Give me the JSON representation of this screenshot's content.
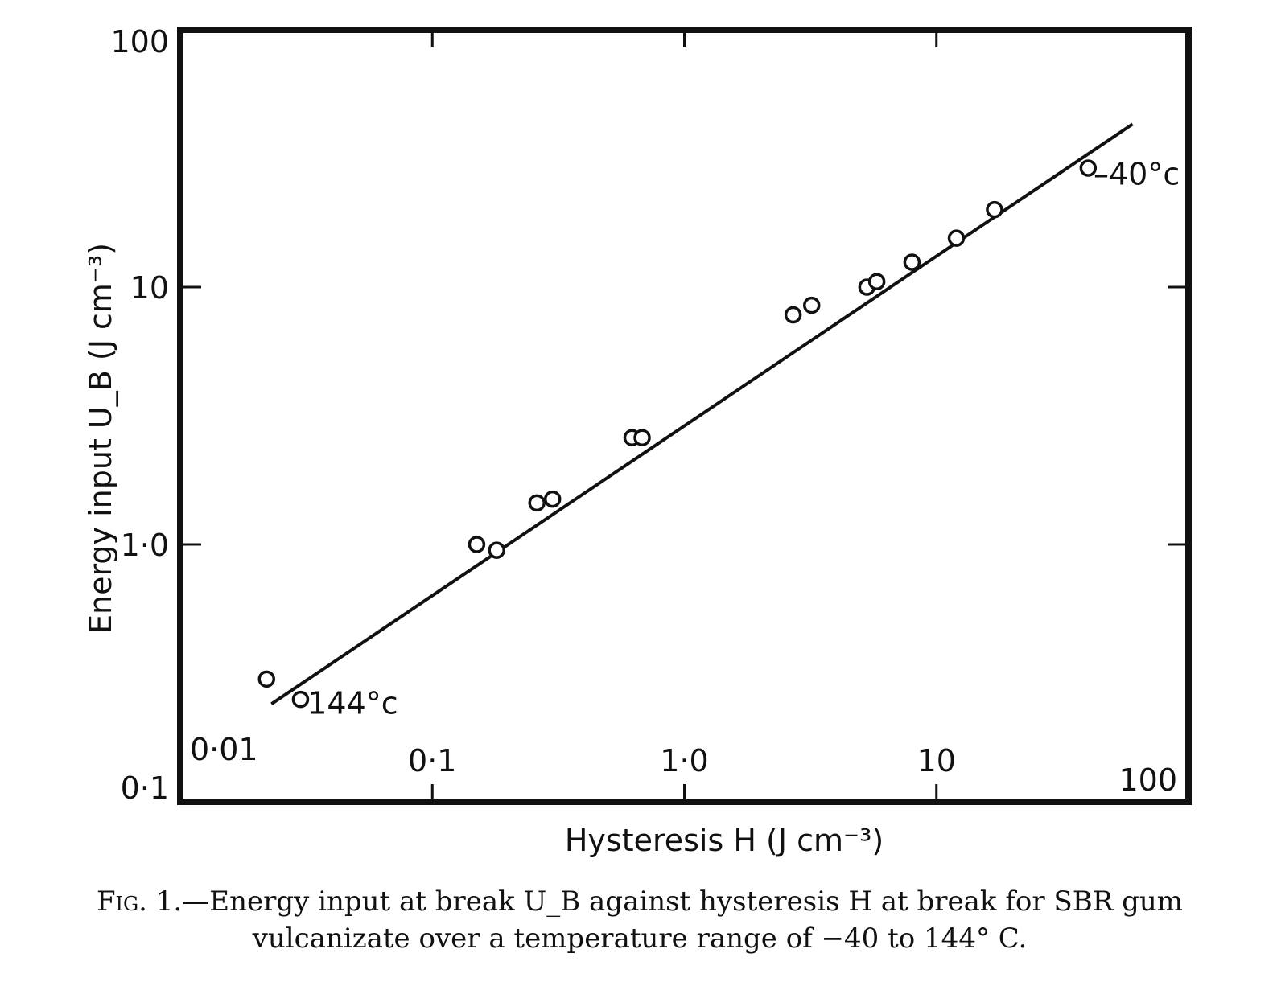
{
  "chart_data": {
    "type": "scatter",
    "title": "",
    "xlabel": "Hysteresis H (J cm⁻³)",
    "ylabel": "Energy input U_B (J cm⁻³)",
    "xscale": "log",
    "yscale": "log",
    "xlim": [
      0.01,
      100
    ],
    "ylim": [
      0.1,
      100
    ],
    "grid": false,
    "x_tick_labels": [
      "0·01",
      "0·1",
      "1·0",
      "10",
      "100"
    ],
    "x_tick_values": [
      0.01,
      0.1,
      1.0,
      10,
      100
    ],
    "y_tick_labels": [
      "0·1",
      "1·0",
      "10",
      "100"
    ],
    "y_tick_values": [
      0.1,
      1.0,
      10,
      100
    ],
    "series": [
      {
        "marker": "open-circle",
        "x": [
          0.022,
          0.03,
          0.15,
          0.18,
          0.26,
          0.3,
          0.62,
          0.68,
          2.7,
          3.2,
          5.3,
          5.8,
          8.0,
          12.0,
          17.0,
          40.0
        ],
        "y": [
          0.3,
          0.25,
          1.0,
          0.95,
          1.45,
          1.5,
          2.6,
          2.6,
          7.8,
          8.5,
          10.0,
          10.5,
          12.5,
          15.5,
          20.0,
          29.0
        ]
      }
    ],
    "fit_line": {
      "x": [
        0.023,
        60.0
      ],
      "y": [
        0.24,
        43.0
      ]
    },
    "annotations": [
      {
        "text": "144°c",
        "x": 0.032,
        "y": 0.22
      },
      {
        "text": "–40°c",
        "x": 42.0,
        "y": 25.0
      }
    ]
  },
  "caption": {
    "fig_label": "Fig. 1.",
    "text": "—Energy input at break U_B against hysteresis H at break for SBR gum vulcanizate over a temperature range of −40 to 144° C."
  }
}
